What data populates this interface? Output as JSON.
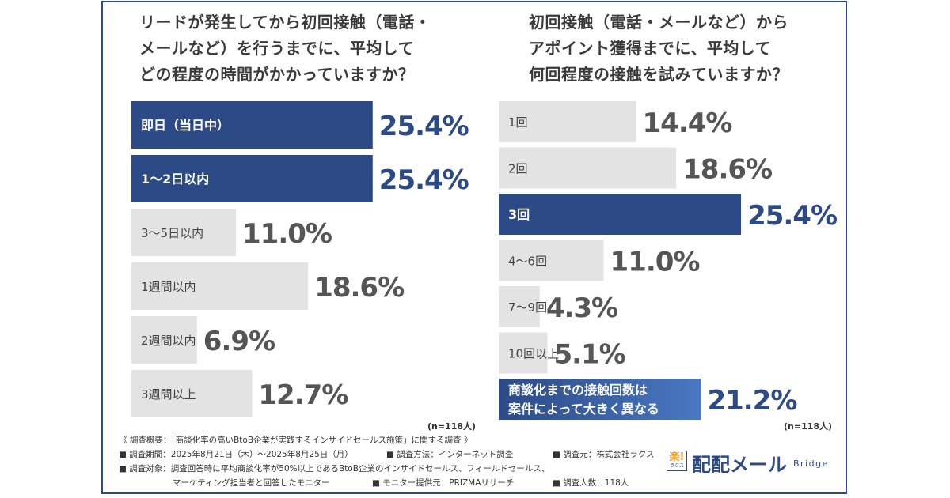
{
  "chart_data": [
    {
      "type": "bar",
      "orientation": "horizontal",
      "title_lines": [
        "リードが発生してから初回接触（電話・",
        "メールなど）を行うまでに、平均して",
        "どの程度の時間がかかっていますか？"
      ],
      "categories": [
        "即日（当日中）",
        "1～2日以内",
        "3～5日以内",
        "1週間以内",
        "2週間以内",
        "3週間以上"
      ],
      "values": [
        25.4,
        25.4,
        11.0,
        18.6,
        6.9,
        12.7
      ],
      "value_labels": [
        "25.4%",
        "25.4%",
        "11.0%",
        "18.6%",
        "6.9%",
        "12.7%"
      ],
      "highlight": [
        true,
        true,
        false,
        false,
        false,
        false
      ],
      "n_label": "(n=118人)"
    },
    {
      "type": "bar",
      "orientation": "horizontal",
      "title_lines": [
        "初回接触（電話・メールなど）から",
        "アポイント獲得までに、平均して",
        "何回程度の接触を試みていますか？"
      ],
      "categories": [
        "1回",
        "2回",
        "3回",
        "4～6回",
        "7～9回",
        "10回以上",
        "商談化までの接触回数は|案件によって大きく異なる"
      ],
      "values": [
        14.4,
        18.6,
        25.4,
        11.0,
        4.3,
        5.1,
        21.2
      ],
      "value_labels": [
        "14.4%",
        "18.6%",
        "25.4%",
        "11.0%",
        "4.3%",
        "5.1%",
        "21.2%"
      ],
      "highlight": [
        false,
        false,
        true,
        false,
        false,
        false,
        false
      ],
      "n_label": "(n=118人)"
    }
  ],
  "colors": {
    "highlight_bar": "#2c4a86",
    "normal_bar": "#e3e3e3",
    "last_bar_right": "#4a78c2",
    "highlight_value": "#2c4a86",
    "normal_value": "#555555",
    "frame": "#2c4a86"
  },
  "footer": {
    "line1": "《 調査概要：「商談化率の高いBtoB企業が実践するインサイドセールス施策」に関する調査 》",
    "period": "■ 調査期間：2025年8月21日（木）～2025年8月25日（月）",
    "method": "■ 調査方法：インターネット調査",
    "source": "■ 調査元：株式会社ラクス",
    "target": "■ 調査対象：調査回答時に平均商談化率が50%以上であるBtoB企業のインサイドセールス、フィールドセールス、",
    "target2": "マーケティング担当者と回答したモニター",
    "provider": "■ モニター提供元：PRIZMAリサーチ",
    "count": "■ 調査人数：118人"
  },
  "logo": {
    "box_big": "楽!",
    "box_small": "ラクス",
    "name": "配配メール",
    "sub": "Bridge"
  }
}
